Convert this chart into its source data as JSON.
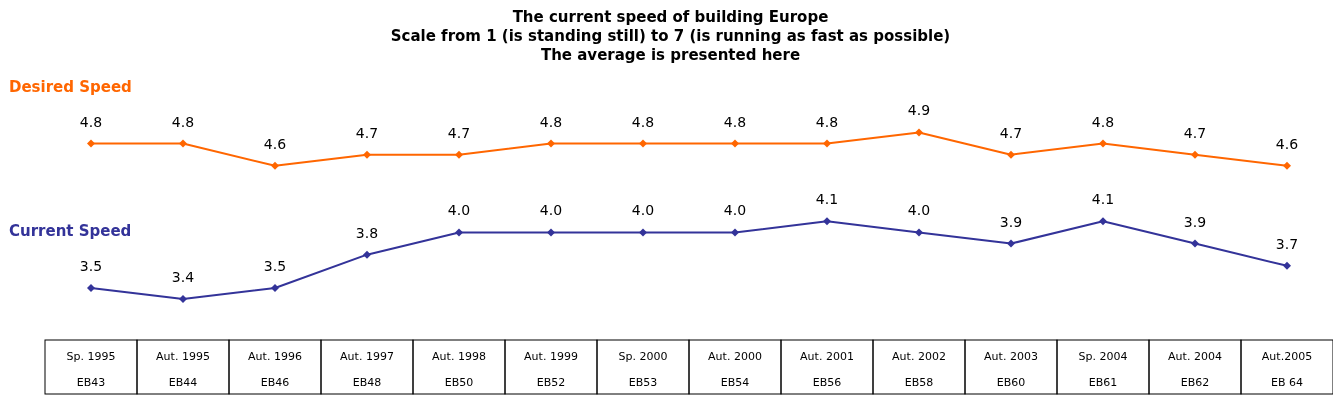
{
  "chart_data": {
    "type": "line",
    "title": "The current speed of building Europe",
    "subtitle": "Scale from 1 (is standing still) to 7 (is running as fast as possible)\nThe average is presented here",
    "categories": [
      "Sp. 1995\nEB43",
      "Aut. 1995\nEB44",
      "Aut. 1996\nEB46",
      "Aut. 1997\nEB48",
      "Aut. 1998\nEB50",
      "Aut. 1999\nEB52",
      "Sp. 2000\nEB53",
      "Aut. 2000\nEB54",
      "Aut. 2001\nEB56",
      "Aut. 2002\nEB58",
      "Aut. 2003\nEB60",
      "Sp. 2004\nEB61",
      "Aut. 2004\nEB62",
      "Aut.2005\nEB 64"
    ],
    "series": [
      {
        "name": "Desired Speed",
        "color": "#ff6600",
        "values": [
          4.8,
          4.8,
          4.6,
          4.7,
          4.7,
          4.8,
          4.8,
          4.8,
          4.8,
          4.9,
          4.7,
          4.8,
          4.7,
          4.6
        ],
        "value_labels": [
          "4.8",
          "4.8",
          "4.6",
          "4.7",
          "4.7",
          "4.8",
          "4.8",
          "4.8",
          "4.8",
          "4.9",
          "4.7",
          "4.8",
          "4.7",
          "4.6"
        ]
      },
      {
        "name": "Current Speed",
        "color": "#333399",
        "values": [
          3.5,
          3.4,
          3.5,
          3.8,
          4.0,
          4.0,
          4.0,
          4.0,
          4.1,
          4.0,
          3.9,
          4.1,
          3.9,
          3.7
        ],
        "value_labels": [
          "3.5",
          "3.4",
          "3.5",
          "3.8",
          "4.0",
          "4.0",
          "4.0",
          "4.0",
          "4.1",
          "4.0",
          "3.9",
          "4.1",
          "3.9",
          "3.7"
        ]
      }
    ],
    "marker": "diamond"
  }
}
